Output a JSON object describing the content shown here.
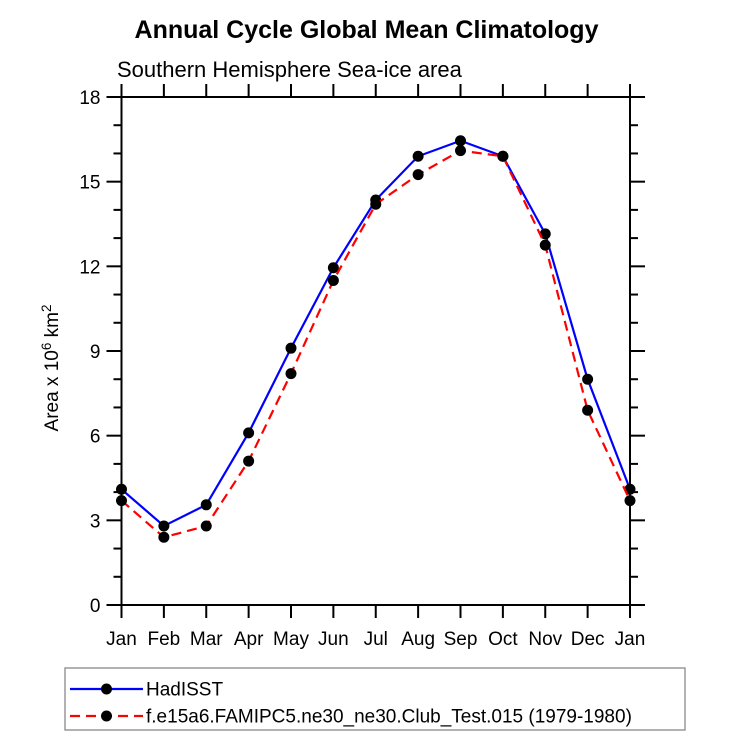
{
  "chart_data": {
    "type": "line",
    "title": "Annual Cycle Global Mean Climatology",
    "subtitle": "Southern Hemisphere Sea-ice area",
    "ylabel": "Area x 10^6 km^2",
    "ylabel_rich": [
      {
        "text": "Area x 10",
        "super": false
      },
      {
        "text": "6",
        "super": true
      },
      {
        "text": " km",
        "super": false
      },
      {
        "text": "2",
        "super": true
      }
    ],
    "categories": [
      "Jan",
      "Feb",
      "Mar",
      "Apr",
      "May",
      "Jun",
      "Jul",
      "Aug",
      "Sep",
      "Oct",
      "Nov",
      "Dec",
      "Jan"
    ],
    "ylim": [
      0,
      18
    ],
    "ytick_major_step": 3,
    "ytick_minor_step": 1,
    "ytick_labels": [
      "0",
      "3",
      "6",
      "9",
      "12",
      "15",
      "18"
    ],
    "grid": false,
    "legend_position": "bottom-left",
    "frame_color": "#000000",
    "marker_color": "#000000",
    "series": [
      {
        "name": "HadISST",
        "color": "#0000ff",
        "line_style": "solid",
        "marker": "filled-circle",
        "values": [
          4.1,
          2.8,
          3.55,
          6.1,
          9.1,
          11.95,
          14.35,
          15.9,
          16.45,
          15.9,
          13.15,
          8.0,
          4.1
        ]
      },
      {
        "name": "f.e15a6.FAMIPC5.ne30_ne30.Club_Test.015 (1979-1980)",
        "color": "#ff0000",
        "line_style": "dashed",
        "marker": "filled-circle",
        "values": [
          3.7,
          2.4,
          2.8,
          5.1,
          8.2,
          11.5,
          14.2,
          15.25,
          16.1,
          15.9,
          12.75,
          6.9,
          3.7
        ]
      }
    ]
  },
  "legend": {
    "border_color": "#999999",
    "entries": [
      "HadISST",
      "f.e15a6.FAMIPC5.ne30_ne30.Club_Test.015 (1979-1980)"
    ]
  }
}
